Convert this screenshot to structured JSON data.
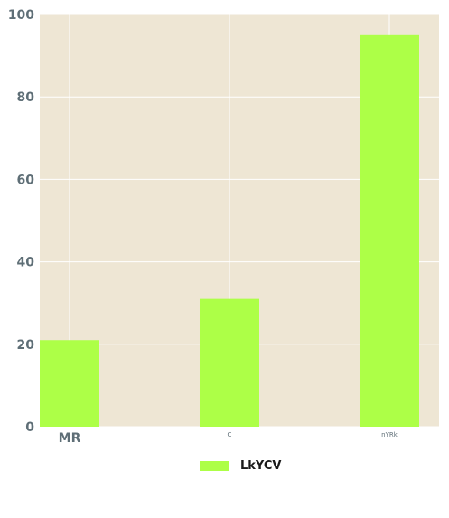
{
  "chart_data": {
    "type": "bar",
    "categories": [
      "MR",
      "C",
      "nYRk"
    ],
    "series": [
      {
        "name": "LkYCV",
        "values": [
          21,
          31,
          95
        ]
      }
    ],
    "title": "",
    "xlabel": "",
    "ylabel": "",
    "ylim": [
      0,
      100
    ],
    "yticks": [
      0,
      20,
      40,
      60,
      80,
      100
    ],
    "grid": true,
    "legend": "bottom-center"
  },
  "colors": {
    "bar": "#adff47",
    "plot_background": "#eee6d4",
    "grid": "#ffffff",
    "tick_text": "#5e6e76"
  }
}
